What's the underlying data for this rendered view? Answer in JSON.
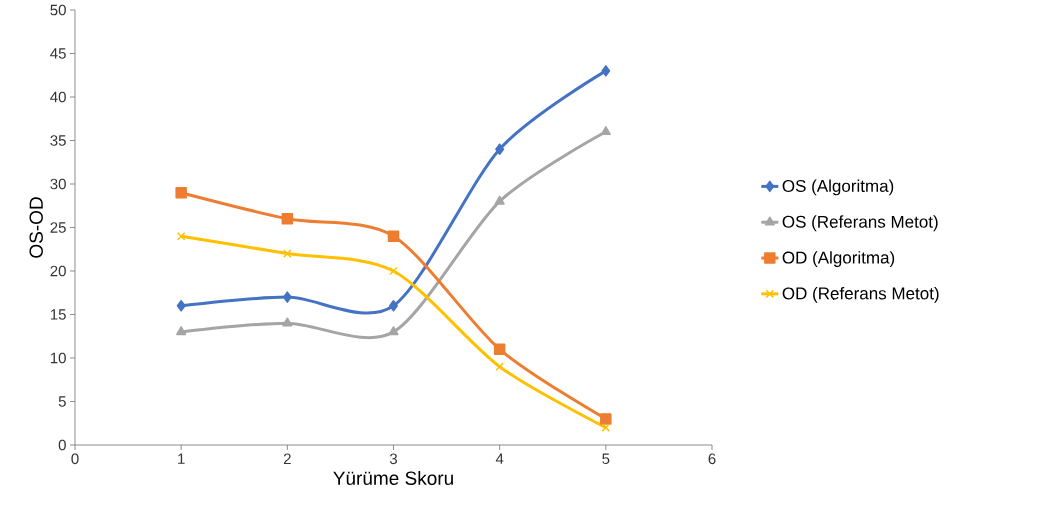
{
  "chart_data": {
    "type": "line",
    "xlabel": "Yürüme Skoru",
    "ylabel": "OS-OD",
    "x": [
      1,
      2,
      3,
      4,
      5
    ],
    "series": [
      {
        "name": "OS (Algoritma)",
        "color": "#4472c4",
        "marker": "diamond",
        "values": [
          16,
          17,
          16,
          34,
          43
        ]
      },
      {
        "name": "OS (Referans Metot)",
        "color": "#a5a5a5",
        "marker": "triangle",
        "values": [
          13,
          14,
          13,
          28,
          36
        ]
      },
      {
        "name": "OD (Algoritma)",
        "color": "#ed7d31",
        "marker": "square",
        "values": [
          29,
          26,
          24,
          11,
          3
        ]
      },
      {
        "name": "OD (Referans Metot)",
        "color": "#ffc000",
        "marker": "cross",
        "values": [
          24,
          22,
          20,
          9,
          2
        ]
      }
    ],
    "xlim": [
      0,
      6
    ],
    "xticks": [
      0,
      1,
      2,
      3,
      4,
      5,
      6
    ],
    "ylim": [
      0,
      50
    ],
    "yticks": [
      0,
      5,
      10,
      15,
      20,
      25,
      30,
      35,
      40,
      45,
      50
    ],
    "grid": false,
    "legend": "right",
    "line_style": "solid"
  }
}
